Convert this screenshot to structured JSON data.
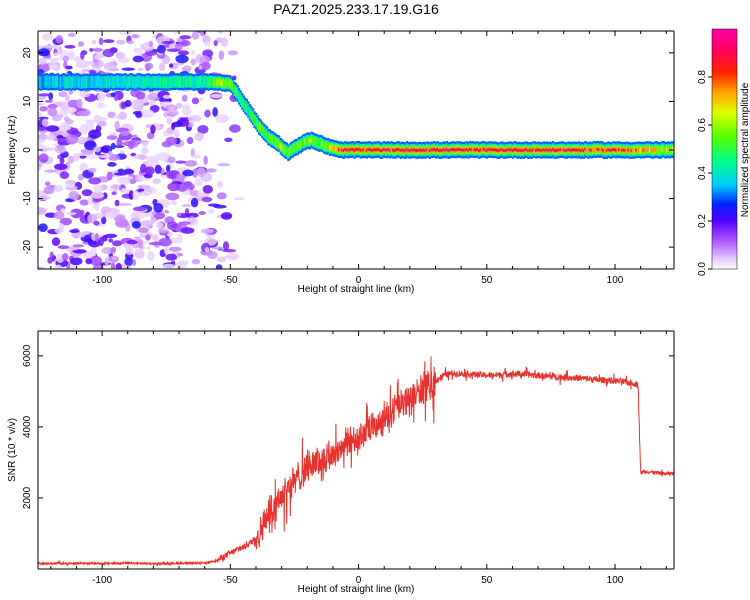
{
  "chart_data": [
    {
      "type": "heatmap",
      "title": "PAZ1.2025.233.17.19.G16",
      "xlabel": "Height of straight line (km)",
      "ylabel": "Frequency (Hz)",
      "xlim": [
        -125,
        123
      ],
      "ylim": [
        -24.5,
        24.5
      ],
      "xticks": [
        -100,
        -50,
        0,
        50,
        100
      ],
      "yticks": [
        -20,
        -10,
        0,
        10,
        20
      ],
      "xtick_labels": [
        "-100",
        "-50",
        "0",
        "50",
        "100"
      ],
      "ytick_labels": [
        "-20",
        "-10",
        "0",
        "10",
        "20"
      ],
      "ridge": {
        "x": [
          -125,
          -60,
          -55,
          -50,
          -47,
          -43,
          -40,
          -37,
          -35,
          -32,
          -30,
          -28,
          -25,
          -22,
          -19,
          -16,
          -13,
          -10,
          -8,
          -5,
          0,
          50,
          100,
          123
        ],
        "y": [
          14,
          14,
          14,
          13.5,
          11,
          8,
          5.5,
          3.5,
          2.5,
          1.5,
          0.5,
          -0.5,
          0.5,
          1.5,
          2,
          1.5,
          0.8,
          0.3,
          0,
          0,
          0,
          0,
          0,
          0
        ],
        "amplitude": [
          0.35,
          0.45,
          0.6,
          0.55,
          0.45,
          0.45,
          0.5,
          0.55,
          0.5,
          0.6,
          0.6,
          0.55,
          0.5,
          0.55,
          0.6,
          0.55,
          0.6,
          0.7,
          0.85,
          0.95,
          0.95,
          0.95,
          0.9,
          0.6
        ]
      },
      "noise_region_x": [
        -125,
        -45
      ],
      "colorbar": {
        "label": "Normalized spectral amplitude",
        "range": [
          0,
          1
        ],
        "ticks": [
          0,
          0.2,
          0.4,
          0.6,
          0.8
        ],
        "tick_labels": [
          "0.0",
          "0.2",
          "0.4",
          "0.6",
          "0.8"
        ],
        "colormap": "gist_rainbow_with_white"
      }
    },
    {
      "type": "line",
      "xlabel": "Height of straight line (km)",
      "ylabel": "SNR (10 * v/v)",
      "xlim": [
        -125,
        123
      ],
      "ylim": [
        0,
        6700
      ],
      "xticks": [
        -100,
        -50,
        0,
        50,
        100
      ],
      "yticks": [
        2000,
        4000,
        6000
      ],
      "xtick_labels": [
        "-100",
        "-50",
        "0",
        "50",
        "100"
      ],
      "ytick_labels": [
        "2000",
        "4000",
        "6000"
      ],
      "series": [
        {
          "name": "SNR",
          "color": "#e8322e",
          "x": [
            -125,
            -110,
            -100,
            -90,
            -80,
            -70,
            -60,
            -55,
            -50,
            -47,
            -44,
            -41,
            -38,
            -35,
            -32,
            -29,
            -26,
            -23,
            -20,
            -17,
            -14,
            -11,
            -8,
            -5,
            -2,
            0,
            3,
            6,
            9,
            12,
            15,
            18,
            21,
            24,
            27,
            30,
            33,
            36,
            40,
            45,
            50,
            55,
            60,
            65,
            70,
            75,
            80,
            85,
            90,
            95,
            100,
            105,
            109,
            110,
            111,
            115,
            120,
            123
          ],
          "y": [
            150,
            160,
            155,
            165,
            150,
            160,
            170,
            250,
            450,
            550,
            650,
            800,
            1100,
            1600,
            1900,
            2200,
            2400,
            2600,
            2900,
            3000,
            3050,
            3200,
            3350,
            3500,
            3600,
            3700,
            3850,
            4000,
            4150,
            4350,
            4500,
            4650,
            4800,
            5000,
            5150,
            5300,
            5450,
            5500,
            5500,
            5480,
            5450,
            5470,
            5500,
            5480,
            5450,
            5420,
            5400,
            5380,
            5350,
            5320,
            5300,
            5250,
            5200,
            2700,
            2750,
            2720,
            2680,
            2700
          ]
        }
      ]
    }
  ]
}
